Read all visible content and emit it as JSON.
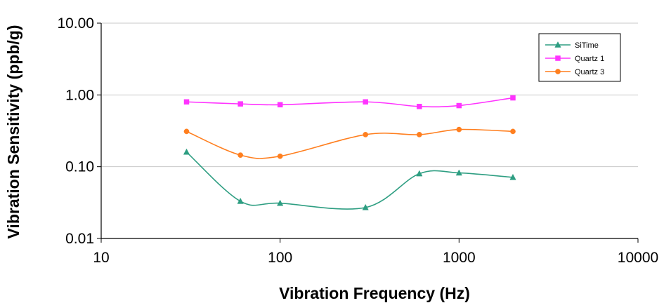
{
  "chart_data": {
    "type": "line",
    "title": "",
    "xlabel": "Vibration Frequency (Hz)",
    "ylabel": "Vibration Sensitivity (ppb/g)",
    "x_scale": "log",
    "y_scale": "log",
    "xlim": [
      10,
      10000
    ],
    "ylim": [
      0.01,
      10
    ],
    "x_ticks": [
      10,
      100,
      1000,
      10000
    ],
    "x_tick_labels": [
      "10",
      "100",
      "1000",
      "10000"
    ],
    "y_ticks": [
      0.01,
      0.1,
      1,
      10
    ],
    "y_tick_labels": [
      "0.01",
      "0.10",
      "1.00",
      "10.00"
    ],
    "grid": "horizontal",
    "legend_position": "top-right",
    "x": [
      30,
      60,
      100,
      300,
      600,
      1000,
      2000
    ],
    "series": [
      {
        "name": "SiTime",
        "color": "#2e9e82",
        "marker": "triangle",
        "values": [
          0.16,
          0.033,
          0.031,
          0.027,
          0.08,
          0.082,
          0.071
        ]
      },
      {
        "name": "Quartz 1",
        "color": "#ff33ff",
        "marker": "square",
        "values": [
          0.8,
          0.75,
          0.73,
          0.8,
          0.69,
          0.71,
          0.91
        ]
      },
      {
        "name": "Quartz 3",
        "color": "#ff7f1f",
        "marker": "circle",
        "values": [
          0.31,
          0.145,
          0.14,
          0.28,
          0.28,
          0.33,
          0.31
        ]
      }
    ]
  }
}
